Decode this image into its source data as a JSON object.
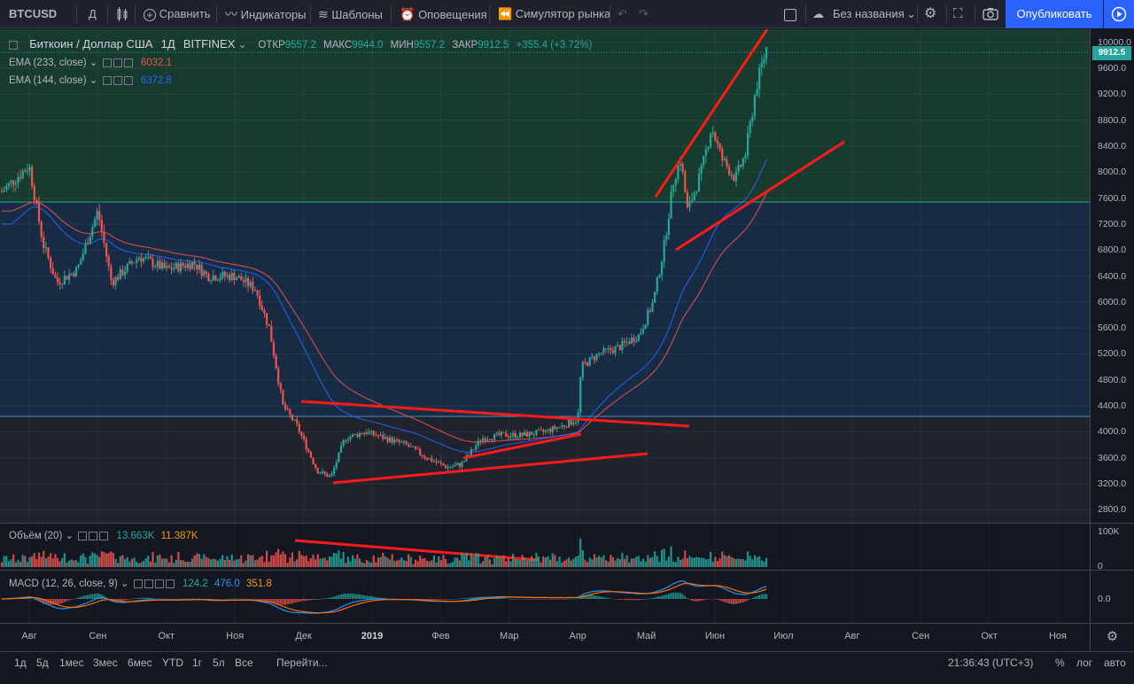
{
  "toolbar": {
    "symbol": "BTCUSD",
    "interval": "Д",
    "compare": "Сравнить",
    "indicators": "Индикаторы",
    "templates": "Шаблоны",
    "alerts": "Оповещения",
    "replay": "Симулятор рынка",
    "layout_name": "Без названия",
    "publish": "Опубликовать"
  },
  "legend": {
    "title": "Биткоин / Доллар США",
    "interval": "1Д",
    "exchange": "BITFINEX",
    "open_label": "ОТКР",
    "open": "9557.2",
    "high_label": "МАКС",
    "high": "9944.0",
    "low_label": "МИН",
    "low": "9557.2",
    "close_label": "ЗАКР",
    "close": "9912.5",
    "change": "+355.4 (+3.72%)",
    "ema233": "EMA (233, close)",
    "ema233_value": "6032.1",
    "ema144": "EMA (144, close)",
    "ema144_value": "6372.8",
    "volume": "Объём (20)",
    "volume_v1": "13.663K",
    "volume_v2": "11.387K",
    "macd": "MACD (12, 26, close, 9)",
    "macd_v1": "124.2",
    "macd_v2": "476.0",
    "macd_v3": "351.8"
  },
  "price_axis": [
    "10000.0",
    "9600.0",
    "9200.0",
    "8800.0",
    "8400.0",
    "8000.0",
    "7600.0",
    "7200.0",
    "6800.0",
    "6400.0",
    "6000.0",
    "5600.0",
    "5200.0",
    "4800.0",
    "4400.0",
    "4000.0",
    "3600.0",
    "3200.0",
    "2800.0"
  ],
  "last_price": "9912.5",
  "volume_axis": [
    "100K",
    "0"
  ],
  "macd_axis": [
    "0.0"
  ],
  "time_axis": [
    "Авг",
    "Сен",
    "Окт",
    "Ноя",
    "Дек",
    "2019",
    "Фев",
    "Мар",
    "Апр",
    "Май",
    "Июн",
    "Июл",
    "Авг",
    "Сен",
    "Окт",
    "Ноя"
  ],
  "bottom": {
    "ranges": [
      "1д",
      "5д",
      "1мес",
      "3мес",
      "6мес",
      "YTD",
      "1г",
      "5л",
      "Все"
    ],
    "goto": "Перейти...",
    "clock": "21:36:43 (UTC+3)",
    "percent": "%",
    "log": "лог",
    "auto": "авто"
  },
  "colors": {
    "up": "#26a69a",
    "down": "#ef5350",
    "ema233": "#ef5350",
    "ema144": "#2962ff",
    "trend": "#ff1a1a"
  },
  "chart_data": {
    "type": "candlestick",
    "symbol": "BTCUSD",
    "x": [
      "Авг",
      "Сен",
      "Окт",
      "Ноя",
      "Дек",
      "2019",
      "Фев",
      "Мар",
      "Апр",
      "Май",
      "Июн"
    ],
    "close": [
      7000,
      6600,
      6400,
      6300,
      3800,
      3700,
      3550,
      3950,
      5250,
      8000,
      8900
    ],
    "last_close": 9912.5,
    "series": [
      {
        "name": "EMA (233, close)",
        "last": 6032.1
      },
      {
        "name": "EMA (144, close)",
        "last": 6372.8
      }
    ],
    "ylim": [
      2600,
      10200
    ]
  }
}
